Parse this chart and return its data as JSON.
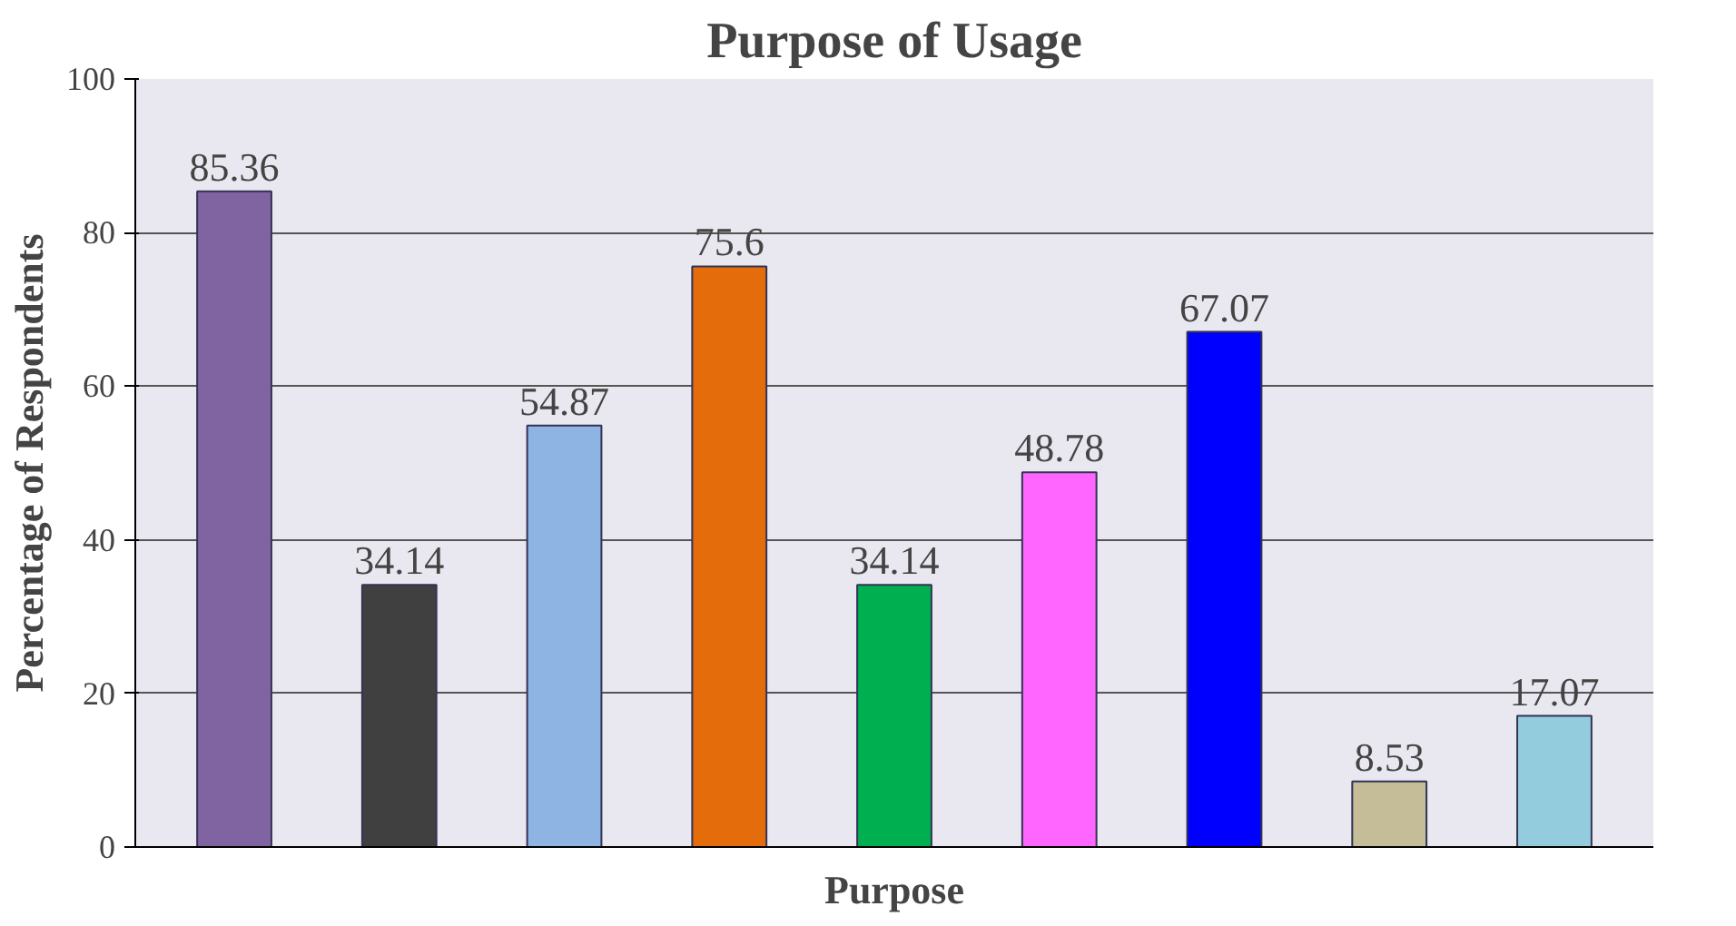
{
  "chart_data": {
    "type": "bar",
    "title": "Purpose of Usage",
    "xlabel": "Purpose",
    "ylabel": "Percentage of Respondents",
    "categories": [
      null,
      null,
      null,
      null,
      null,
      null,
      null,
      null,
      null
    ],
    "values": [
      85.36,
      34.14,
      54.87,
      75.6,
      34.14,
      48.78,
      67.07,
      8.53,
      17.07
    ],
    "colors": [
      "#8064a2",
      "#404040",
      "#8eb4e3",
      "#e46c0a",
      "#00b050",
      "#ff66ff",
      "#0000ff",
      "#c4bd97",
      "#93cddd"
    ],
    "ylim": [
      0,
      100
    ],
    "yticks": [
      0,
      20,
      40,
      60,
      80,
      100
    ],
    "grid": "y",
    "data_labels": true
  }
}
